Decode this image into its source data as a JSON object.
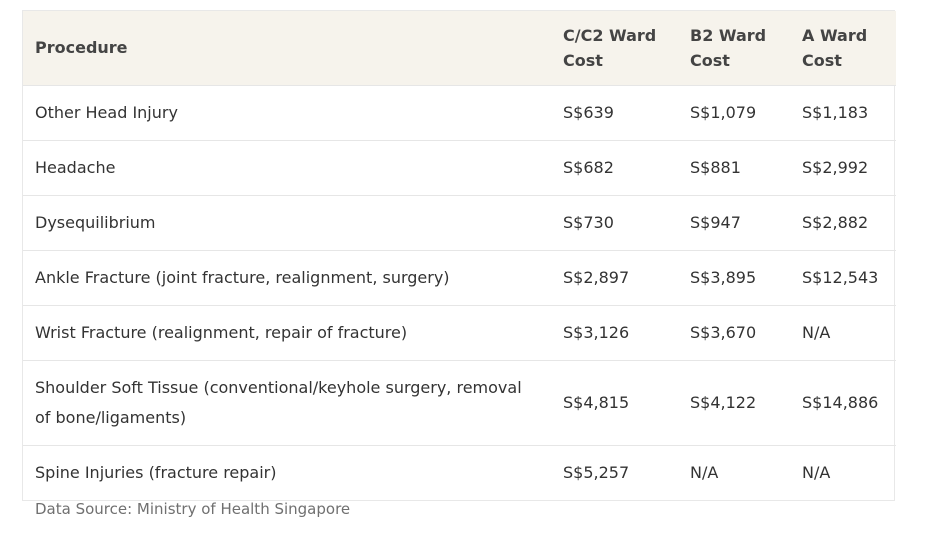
{
  "table": {
    "headers": {
      "procedure": "Procedure",
      "c2": "C/C2 Ward Cost",
      "b2": "B2 Ward Cost",
      "a": "A Ward Cost"
    },
    "rows": [
      {
        "procedure": "Other Head Injury",
        "c2": "S$639",
        "b2": "S$1,079",
        "a": "S$1,183"
      },
      {
        "procedure": "Headache",
        "c2": "S$682",
        "b2": "S$881",
        "a": "S$2,992"
      },
      {
        "procedure": "Dysequilibrium",
        "c2": "S$730",
        "b2": "S$947",
        "a": "S$2,882"
      },
      {
        "procedure": "Ankle Fracture (joint fracture, realignment, surgery)",
        "c2": "S$2,897",
        "b2": "S$3,895",
        "a": "S$12,543"
      },
      {
        "procedure": "Wrist Fracture (realignment, repair of fracture)",
        "c2": "S$3,126",
        "b2": "S$3,670",
        "a": "N/A"
      },
      {
        "procedure": "Shoulder Soft Tissue (conventional/keyhole surgery, removal of bone/ligaments)",
        "c2": "S$4,815",
        "b2": "S$4,122",
        "a": "S$14,886"
      },
      {
        "procedure": "Spine Injuries (fracture repair)",
        "c2": "S$5,257",
        "b2": "N/A",
        "a": "N/A"
      }
    ]
  },
  "source": "Data Source: Ministry of Health Singapore"
}
